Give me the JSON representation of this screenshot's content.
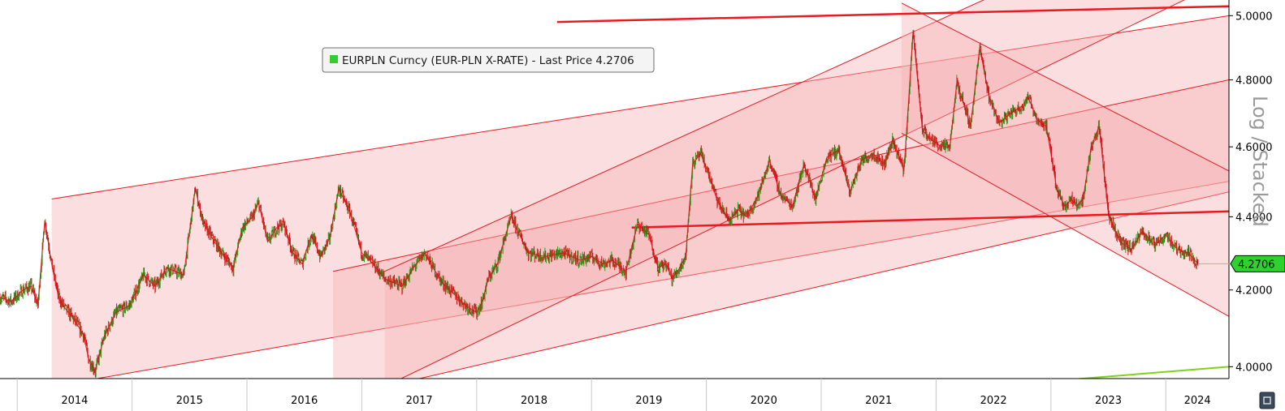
{
  "chart_data": {
    "type": "line",
    "legend": {
      "label": "EURPLN Curncy (EUR-PLN X-RATE) - Last Price 4.2706",
      "placement": "top-left",
      "color": "#33cc33"
    },
    "last_price": "4.2706",
    "axis_side_label": "Log / Stacked",
    "y_scale": "log",
    "ylim": [
      3.97,
      5.05
    ],
    "y_ticks": [
      "4.0000",
      "4.2000",
      "4.4000",
      "4.6000",
      "4.8000",
      "5.0000"
    ],
    "x_ticks": [
      "2014",
      "2015",
      "2016",
      "2017",
      "2018",
      "2019",
      "2020",
      "2021",
      "2022",
      "2023",
      "2024"
    ],
    "x_range": [
      2013.85,
      2024.55
    ],
    "colors": {
      "up": "#2e9e1f",
      "down": "#d4141a",
      "channel": "#e8191f",
      "fill": "#f6b3b5",
      "support": "#7fd11a"
    },
    "series": [
      {
        "name": "EURPLN Curncy",
        "x": [
          2013.85,
          2013.95,
          2014.05,
          2014.12,
          2014.18,
          2014.24,
          2014.3,
          2014.36,
          2014.42,
          2014.5,
          2014.58,
          2014.62,
          2014.68,
          2014.76,
          2014.86,
          2014.98,
          2015.1,
          2015.2,
          2015.3,
          2015.45,
          2015.55,
          2015.62,
          2015.7,
          2015.78,
          2015.88,
          2015.96,
          2016.05,
          2016.1,
          2016.18,
          2016.26,
          2016.32,
          2016.4,
          2016.48,
          2016.56,
          2016.64,
          2016.72,
          2016.8,
          2016.9,
          2017.0,
          2017.1,
          2017.2,
          2017.35,
          2017.45,
          2017.55,
          2017.62,
          2017.7,
          2017.8,
          2017.9,
          2018.0,
          2018.05,
          2018.1,
          2018.18,
          2018.3,
          2018.45,
          2018.6,
          2018.75,
          2018.9,
          2019.0,
          2019.1,
          2019.18,
          2019.3,
          2019.4,
          2019.5,
          2019.58,
          2019.65,
          2019.7,
          2019.75,
          2019.82,
          2019.88,
          2019.95,
          2020.02,
          2020.1,
          2020.2,
          2020.28,
          2020.35,
          2020.45,
          2020.55,
          2020.65,
          2020.75,
          2020.85,
          2020.95,
          2021.05,
          2021.15,
          2021.25,
          2021.35,
          2021.45,
          2021.55,
          2021.62,
          2021.68,
          2021.72,
          2021.75,
          2021.8,
          2021.88,
          2021.96,
          2022.05,
          2022.12,
          2022.18,
          2022.25,
          2022.3,
          2022.38,
          2022.46,
          2022.55,
          2022.65,
          2022.75,
          2022.8,
          2022.88,
          2022.96,
          2023.05,
          2023.12,
          2023.18,
          2023.22,
          2023.28,
          2023.35,
          2023.42,
          2023.5,
          2023.6,
          2023.7,
          2023.8,
          2023.9,
          2024.0,
          2024.1,
          2024.2,
          2024.28
        ],
        "values": [
          4.18,
          4.17,
          4.2,
          4.21,
          4.16,
          4.39,
          4.27,
          4.18,
          4.15,
          4.12,
          4.08,
          4.02,
          3.99,
          4.08,
          4.14,
          4.16,
          4.24,
          4.21,
          4.26,
          4.24,
          4.48,
          4.38,
          4.34,
          4.3,
          4.26,
          4.37,
          4.4,
          4.44,
          4.33,
          4.37,
          4.38,
          4.3,
          4.27,
          4.35,
          4.29,
          4.34,
          4.48,
          4.41,
          4.3,
          4.27,
          4.23,
          4.21,
          4.26,
          4.3,
          4.26,
          4.22,
          4.19,
          4.16,
          4.14,
          4.17,
          4.23,
          4.27,
          4.4,
          4.3,
          4.29,
          4.3,
          4.28,
          4.29,
          4.27,
          4.28,
          4.25,
          4.38,
          4.35,
          4.26,
          4.27,
          4.23,
          4.25,
          4.29,
          4.55,
          4.58,
          4.52,
          4.44,
          4.39,
          4.42,
          4.4,
          4.46,
          4.56,
          4.46,
          4.43,
          4.55,
          4.45,
          4.57,
          4.59,
          4.47,
          4.56,
          4.58,
          4.55,
          4.62,
          4.57,
          4.53,
          4.68,
          4.95,
          4.65,
          4.62,
          4.6,
          4.6,
          4.79,
          4.72,
          4.66,
          4.9,
          4.75,
          4.67,
          4.7,
          4.72,
          4.75,
          4.68,
          4.66,
          4.48,
          4.43,
          4.45,
          4.43,
          4.45,
          4.6,
          4.66,
          4.41,
          4.33,
          4.31,
          4.36,
          4.32,
          4.35,
          4.31,
          4.3,
          4.27
        ]
      }
    ],
    "annotations": {
      "channels": [
        {
          "start": [
            2014.3,
            4.45
          ],
          "end": [
            2024.55,
            5.0
          ],
          "width": -0.5
        },
        {
          "start": [
            2016.75,
            4.25
          ],
          "end": [
            2024.55,
            4.8
          ],
          "width": -0.33
        },
        {
          "start": [
            2017.2,
            3.95
          ],
          "end": [
            2024.55,
            5.12
          ],
          "width": 0.3
        },
        {
          "start": [
            2021.7,
            5.04
          ],
          "end": [
            2024.55,
            4.53
          ],
          "width": -0.4
        }
      ],
      "lines": [
        {
          "start": [
            2018.7,
            4.98
          ],
          "end": [
            2024.55,
            5.03
          ],
          "bold": true
        },
        {
          "start": [
            2019.35,
            4.37
          ],
          "end": [
            2024.55,
            4.415
          ],
          "bold": true
        },
        {
          "start": [
            2022.85,
            3.96
          ],
          "end": [
            2024.55,
            4.0
          ],
          "color": "support"
        }
      ]
    }
  }
}
